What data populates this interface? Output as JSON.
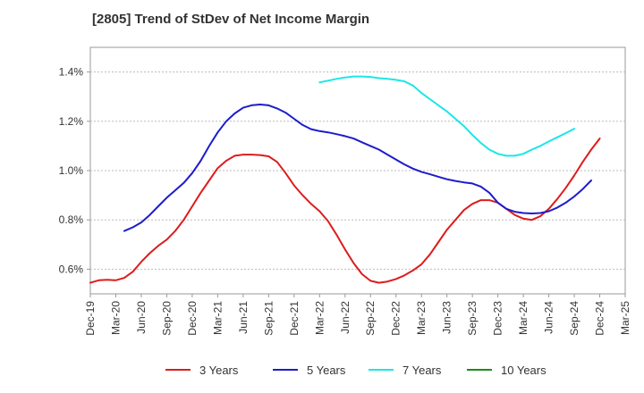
{
  "chart_data": {
    "type": "line",
    "title": "[2805]  Trend of StDev of Net Income Margin",
    "xlabel": "",
    "ylabel": "",
    "x_ticks": [
      "Dec-19",
      "Mar-20",
      "Jun-20",
      "Sep-20",
      "Dec-20",
      "Mar-21",
      "Jun-21",
      "Sep-21",
      "Dec-21",
      "Mar-22",
      "Jun-22",
      "Sep-22",
      "Dec-22",
      "Mar-23",
      "Jun-23",
      "Sep-23",
      "Dec-23",
      "Mar-24",
      "Jun-24",
      "Sep-24",
      "Dec-24",
      "Mar-25"
    ],
    "y_ticks": [
      "0.6%",
      "0.8%",
      "1.0%",
      "1.2%",
      "1.4%"
    ],
    "y_tick_values": [
      0.6,
      0.8,
      1.0,
      1.2,
      1.4
    ],
    "ylim": [
      0.5,
      1.5
    ],
    "grid": "horizontal-dashed",
    "legend_position": "bottom",
    "series": [
      {
        "name": "3 Years",
        "color": "#dd1c1c",
        "start_index": 0,
        "values": [
          0.545,
          0.555,
          0.557,
          0.555,
          0.565,
          0.59,
          0.63,
          0.665,
          0.695,
          0.72,
          0.755,
          0.8,
          0.855,
          0.91,
          0.96,
          1.01,
          1.04,
          1.06,
          1.065,
          1.065,
          1.063,
          1.058,
          1.035,
          0.99,
          0.94,
          0.9,
          0.865,
          0.835,
          0.795,
          0.74,
          0.68,
          0.625,
          0.58,
          0.553,
          0.545,
          0.55,
          0.56,
          0.575,
          0.595,
          0.62,
          0.66,
          0.71,
          0.76,
          0.8,
          0.84,
          0.865,
          0.88,
          0.88,
          0.87,
          0.845,
          0.82,
          0.805,
          0.8,
          0.815,
          0.845,
          0.885,
          0.93,
          0.98,
          1.035,
          1.085,
          1.13
        ]
      },
      {
        "name": "5 Years",
        "color": "#1c1ccc",
        "start_index": 4,
        "values": [
          0.755,
          0.77,
          0.79,
          0.82,
          0.855,
          0.89,
          0.92,
          0.95,
          0.99,
          1.04,
          1.1,
          1.155,
          1.2,
          1.232,
          1.255,
          1.265,
          1.268,
          1.265,
          1.252,
          1.235,
          1.21,
          1.185,
          1.168,
          1.16,
          1.155,
          1.148,
          1.14,
          1.13,
          1.115,
          1.1,
          1.085,
          1.065,
          1.045,
          1.025,
          1.008,
          0.995,
          0.985,
          0.975,
          0.965,
          0.958,
          0.952,
          0.948,
          0.935,
          0.91,
          0.87,
          0.845,
          0.833,
          0.828,
          0.826,
          0.828,
          0.835,
          0.85,
          0.87,
          0.895,
          0.925,
          0.96
        ]
      },
      {
        "name": "7 Years",
        "color": "#1ce6e6",
        "start_index": 27,
        "values": [
          1.358,
          1.365,
          1.372,
          1.378,
          1.382,
          1.382,
          1.38,
          1.375,
          1.372,
          1.368,
          1.362,
          1.345,
          1.315,
          1.29,
          1.265,
          1.24,
          1.21,
          1.18,
          1.145,
          1.112,
          1.085,
          1.068,
          1.06,
          1.06,
          1.068,
          1.085,
          1.1,
          1.118,
          1.135,
          1.152,
          1.17
        ]
      },
      {
        "name": "10 Years",
        "color": "#1c8c1c",
        "start_index": 0,
        "values": []
      }
    ]
  }
}
